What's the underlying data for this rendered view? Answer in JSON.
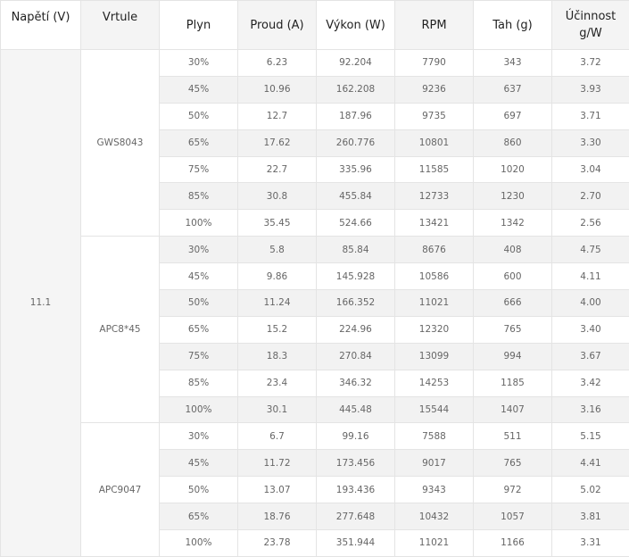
{
  "headers": [
    "Napětí (V)",
    "Vrtule",
    "Plyn",
    "Proud (A)",
    "Výkon (W)",
    "RPM",
    "Tah (g)",
    "Účinnost g/W"
  ],
  "voltage": "11.1",
  "groups": [
    {
      "propeller": "GWS8043",
      "rows": [
        [
          "30%",
          "6.23",
          "92.204",
          "7790",
          "343",
          "3.72"
        ],
        [
          "45%",
          "10.96",
          "162.208",
          "9236",
          "637",
          "3.93"
        ],
        [
          "50%",
          "12.7",
          "187.96",
          "9735",
          "697",
          "3.71"
        ],
        [
          "65%",
          "17.62",
          "260.776",
          "10801",
          "860",
          "3.30"
        ],
        [
          "75%",
          "22.7",
          "335.96",
          "11585",
          "1020",
          "3.04"
        ],
        [
          "85%",
          "30.8",
          "455.84",
          "12733",
          "1230",
          "2.70"
        ],
        [
          "100%",
          "35.45",
          "524.66",
          "13421",
          "1342",
          "2.56"
        ]
      ]
    },
    {
      "propeller": "APC8*45",
      "rows": [
        [
          "30%",
          "5.8",
          "85.84",
          "8676",
          "408",
          "4.75"
        ],
        [
          "45%",
          "9.86",
          "145.928",
          "10586",
          "600",
          "4.11"
        ],
        [
          "50%",
          "11.24",
          "166.352",
          "11021",
          "666",
          "4.00"
        ],
        [
          "65%",
          "15.2",
          "224.96",
          "12320",
          "765",
          "3.40"
        ],
        [
          "75%",
          "18.3",
          "270.84",
          "13099",
          "994",
          "3.67"
        ],
        [
          "85%",
          "23.4",
          "346.32",
          "14253",
          "1185",
          "3.42"
        ],
        [
          "100%",
          "30.1",
          "445.48",
          "15544",
          "1407",
          "3.16"
        ]
      ]
    },
    {
      "propeller": "APC9047",
      "rows": [
        [
          "30%",
          "6.7",
          "99.16",
          "7588",
          "511",
          "5.15"
        ],
        [
          "45%",
          "11.72",
          "173.456",
          "9017",
          "765",
          "4.41"
        ],
        [
          "50%",
          "13.07",
          "193.436",
          "9343",
          "972",
          "5.02"
        ],
        [
          "65%",
          "18.76",
          "277.648",
          "10432",
          "1057",
          "3.81"
        ],
        [
          "100%",
          "23.78",
          "351.944",
          "11021",
          "1166",
          "3.31"
        ]
      ]
    }
  ]
}
